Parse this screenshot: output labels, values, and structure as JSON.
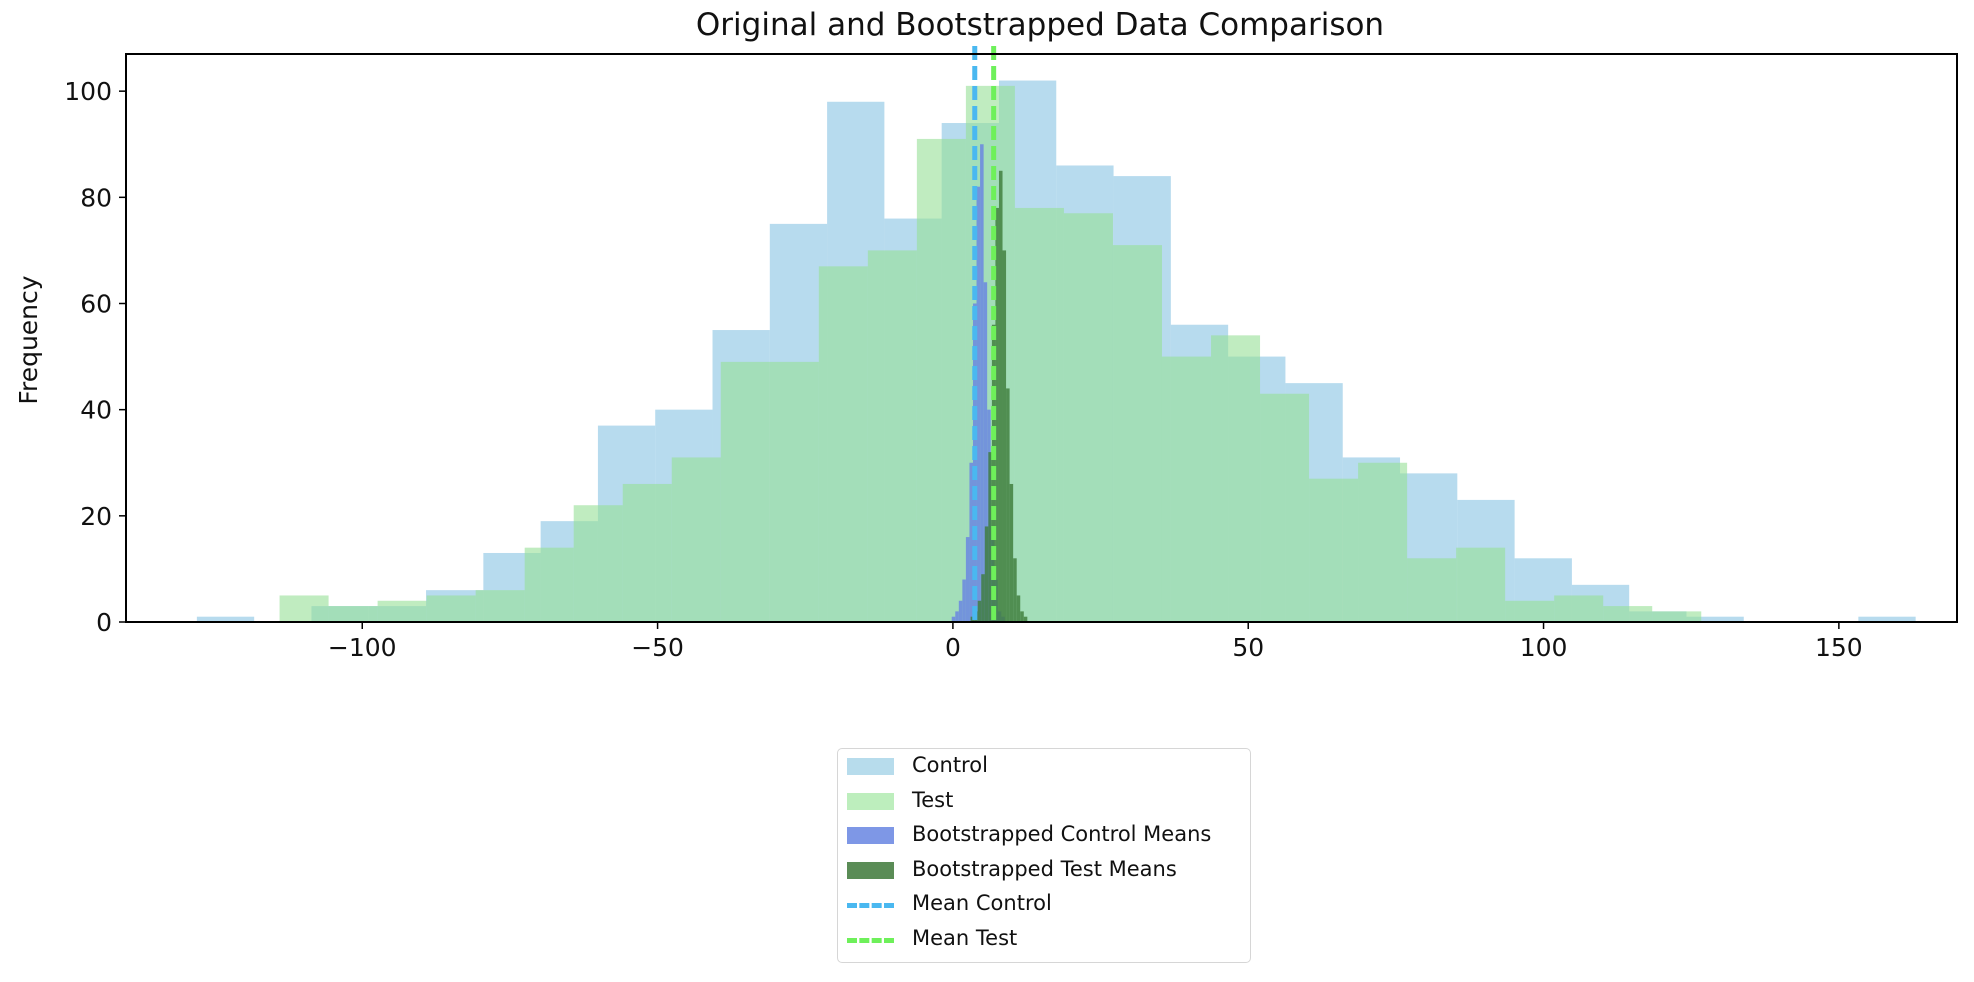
{
  "chart_data": {
    "type": "histogram",
    "title": "Original and Bootstrapped Data Comparison",
    "xlabel": "",
    "ylabel": "Frequency",
    "xlim": [
      -140,
      170
    ],
    "ylim": [
      0,
      107
    ],
    "xticks": [
      -100,
      -50,
      0,
      50,
      100,
      150
    ],
    "xtick_labels": [
      "−100",
      "−50",
      "0",
      "50",
      "100",
      "150"
    ],
    "yticks": [
      0,
      20,
      40,
      60,
      80,
      100
    ],
    "ytick_labels": [
      "0",
      "20",
      "40",
      "60",
      "80",
      "100"
    ],
    "grid": false,
    "legend_position": "below plot, center",
    "series": [
      {
        "name": "Control",
        "color": "#87c3e2",
        "opacity": 0.6,
        "bin_edges": [
          -128.0,
          -118.3,
          -108.6,
          -98.9,
          -89.2,
          -79.5,
          -69.8,
          -60.1,
          -50.4,
          -40.7,
          -31.0,
          -21.3,
          -11.6,
          -1.9,
          7.8,
          17.5,
          27.2,
          36.9,
          46.6,
          56.3,
          66.0,
          75.7,
          85.4,
          95.1,
          104.8,
          114.5,
          124.2,
          133.9,
          143.6,
          153.3,
          163.0
        ],
        "counts": [
          1,
          0,
          3,
          3,
          6,
          13,
          19,
          37,
          40,
          55,
          75,
          98,
          76,
          94,
          102,
          86,
          84,
          56,
          50,
          45,
          31,
          28,
          23,
          12,
          7,
          2,
          1,
          0,
          0,
          1
        ]
      },
      {
        "name": "Test",
        "color": "#96e096",
        "opacity": 0.6,
        "bin_edges": [
          -114.0,
          -105.7,
          -97.4,
          -89.1,
          -80.8,
          -72.5,
          -64.2,
          -55.9,
          -47.6,
          -39.3,
          -31.0,
          -22.7,
          -14.4,
          -6.1,
          2.2,
          10.5,
          18.8,
          27.1,
          35.4,
          43.7,
          52.0,
          60.3,
          68.6,
          76.9,
          85.2,
          93.5,
          101.8,
          110.1,
          118.4,
          126.7,
          135.0
        ],
        "counts": [
          5,
          3,
          4,
          5,
          6,
          14,
          22,
          26,
          31,
          49,
          49,
          67,
          70,
          91,
          101,
          78,
          77,
          71,
          50,
          54,
          43,
          27,
          30,
          12,
          14,
          4,
          5,
          3,
          2,
          0
        ]
      },
      {
        "name": "Bootstrapped Control Means",
        "color": "#6b87e0",
        "opacity": 0.85,
        "bin_edges": [
          -0.8,
          -0.2,
          0.4,
          1.0,
          1.6,
          2.2,
          2.8,
          3.4,
          4.0,
          4.6,
          5.2,
          5.8,
          6.4,
          7.0,
          7.6,
          8.2,
          8.8
        ],
        "counts": [
          0,
          1,
          2,
          4,
          8,
          16,
          30,
          60,
          82,
          90,
          64,
          40,
          18,
          8,
          2,
          1
        ]
      },
      {
        "name": "Bootstrapped Test Means",
        "color": "#3e7d3a",
        "opacity": 0.82,
        "bin_edges": [
          3.0,
          3.6,
          4.2,
          4.8,
          5.4,
          6.0,
          6.6,
          7.2,
          7.8,
          8.4,
          9.0,
          9.6,
          10.2,
          10.8,
          11.4,
          12.0,
          12.6
        ],
        "counts": [
          1,
          2,
          4,
          9,
          18,
          32,
          56,
          78,
          85,
          70,
          44,
          26,
          12,
          5,
          2,
          1
        ]
      }
    ],
    "vlines": [
      {
        "name": "Mean Control",
        "x": 3.7,
        "color": "#4ab8f0",
        "style": "dashed"
      },
      {
        "name": "Mean Test",
        "x": 6.9,
        "color": "#6ef05a",
        "style": "dashed"
      }
    ]
  },
  "legend": {
    "items": [
      {
        "label": "Control",
        "color": "#b7dcec",
        "kind": "patch"
      },
      {
        "label": "Test",
        "color": "#bdeebd",
        "kind": "patch"
      },
      {
        "label": "Bootstrapped Control Means",
        "color": "#7e97e6",
        "kind": "patch"
      },
      {
        "label": "Bootstrapped Test Means",
        "color": "#5a8c56",
        "kind": "patch"
      },
      {
        "label": "Mean Control",
        "color": "#4ab8f0",
        "kind": "line"
      },
      {
        "label": "Mean Test",
        "color": "#6ef05a",
        "kind": "line"
      }
    ]
  }
}
